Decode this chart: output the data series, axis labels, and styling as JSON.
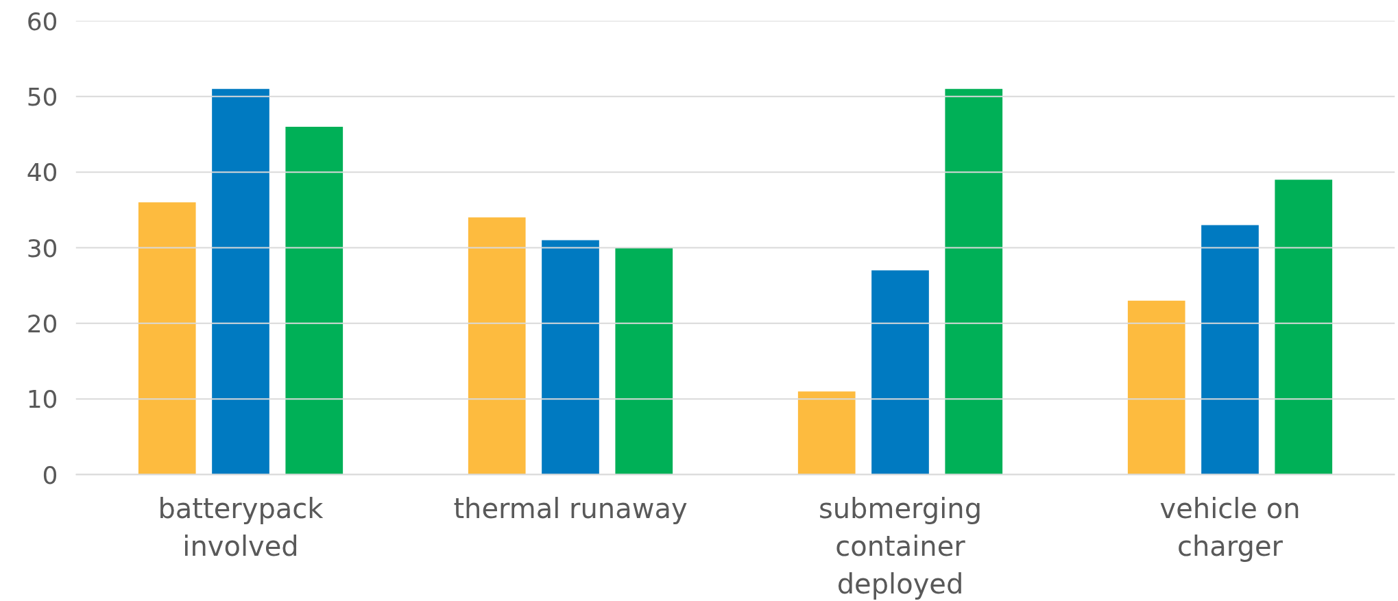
{
  "chart_data": {
    "type": "bar",
    "categories": [
      "batterypack involved",
      "thermal runaway",
      "submerging container deployed",
      "vehicle on charger"
    ],
    "series": [
      {
        "color": "#fdbb3f",
        "values": [
          36,
          34,
          11,
          23
        ]
      },
      {
        "color": "#007ac1",
        "values": [
          51,
          31,
          27,
          33
        ]
      },
      {
        "color": "#00b057",
        "values": [
          46,
          30,
          51,
          39
        ]
      }
    ],
    "ylim": [
      0,
      60
    ],
    "yticks": [
      0,
      10,
      20,
      30,
      40,
      50,
      60
    ],
    "grid": "y"
  }
}
